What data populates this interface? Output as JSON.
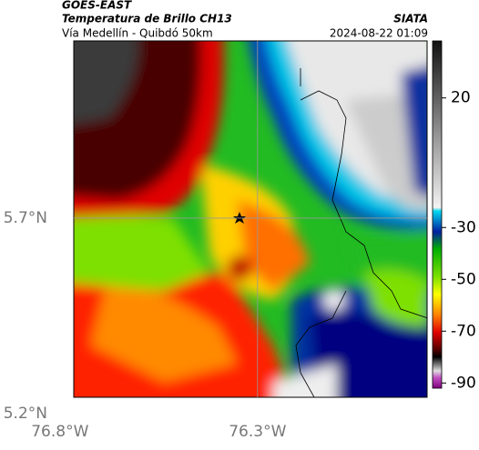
{
  "header": {
    "source": "GOES-EAST",
    "title": "Temperatura de Brillo CH13",
    "brand": "SIATA",
    "subtitle": "Vía Medellín - Quibdó 50km",
    "datetime": "2024-08-22 01:09"
  },
  "map": {
    "xlim": [
      -76.765,
      -75.871
    ],
    "ylim": [
      5.242,
      6.153
    ],
    "xticks": [
      {
        "value": -76.8,
        "label": "76.8°W"
      },
      {
        "value": -76.3,
        "label": "76.3°W"
      }
    ],
    "yticks": [
      {
        "value": 5.2,
        "label": "5.2°N"
      },
      {
        "value": 5.7,
        "label": "5.7°N"
      }
    ],
    "grid": true
  },
  "colorbar": {
    "range": [
      42,
      -92
    ],
    "ticks": [
      20,
      -30,
      -50,
      -70,
      -90
    ]
  }
}
